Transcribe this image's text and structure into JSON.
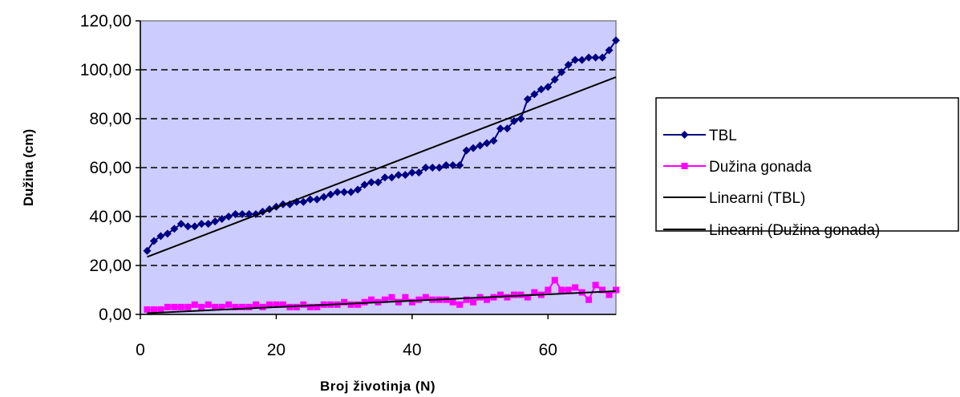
{
  "chart_data": {
    "type": "line",
    "xlabel": "Broj životinja (N)",
    "ylabel": "Dužina (cm)",
    "xlim": [
      0,
      70
    ],
    "ylim": [
      0,
      120
    ],
    "x_ticks": [
      0,
      20,
      40,
      60
    ],
    "x_tick_labels": [
      "0",
      "20",
      "40",
      "60"
    ],
    "y_ticks": [
      0,
      20,
      40,
      60,
      80,
      100,
      120
    ],
    "y_tick_labels": [
      "0,00",
      "20,00",
      "40,00",
      "60,00",
      "80,00",
      "100,00",
      "120,00"
    ],
    "grid": "horizontal dashed",
    "plot_background": "#ccccff",
    "legend_position": "right",
    "series": [
      {
        "name": "TBL",
        "color": "#000080",
        "marker": "diamond",
        "x": [
          1,
          2,
          3,
          4,
          5,
          6,
          7,
          8,
          9,
          10,
          11,
          12,
          13,
          14,
          15,
          16,
          17,
          18,
          19,
          20,
          21,
          22,
          23,
          24,
          25,
          26,
          27,
          28,
          29,
          30,
          31,
          32,
          33,
          34,
          35,
          36,
          37,
          38,
          39,
          40,
          41,
          42,
          43,
          44,
          45,
          46,
          47,
          48,
          49,
          50,
          51,
          52,
          53,
          54,
          55,
          56,
          57,
          58,
          59,
          60,
          61,
          62,
          63,
          64,
          65,
          66,
          67,
          68,
          69,
          70
        ],
        "values": [
          26,
          30,
          32,
          33,
          35,
          37,
          36,
          36,
          37,
          37,
          38,
          39,
          40,
          41,
          41,
          41,
          41,
          42,
          43,
          44,
          45,
          45,
          46,
          46,
          47,
          47,
          48,
          49,
          50,
          50,
          50,
          51,
          53,
          54,
          54,
          56,
          56,
          57,
          57,
          58,
          58,
          60,
          60,
          60,
          61,
          61,
          61,
          67,
          68,
          69,
          70,
          71,
          76,
          76,
          79,
          80,
          88,
          90,
          92,
          93,
          96,
          99,
          102,
          104,
          104,
          105,
          105,
          105,
          108,
          112
        ]
      },
      {
        "name": "Dužina gonada",
        "color": "#ff00ff",
        "marker": "square",
        "x": [
          1,
          2,
          3,
          4,
          5,
          6,
          7,
          8,
          9,
          10,
          11,
          12,
          13,
          14,
          15,
          16,
          17,
          18,
          19,
          20,
          21,
          22,
          23,
          24,
          25,
          26,
          27,
          28,
          29,
          30,
          31,
          32,
          33,
          34,
          35,
          36,
          37,
          38,
          39,
          40,
          41,
          42,
          43,
          44,
          45,
          46,
          47,
          48,
          49,
          50,
          51,
          52,
          53,
          54,
          55,
          56,
          57,
          58,
          59,
          60,
          61,
          62,
          63,
          64,
          65,
          66,
          67,
          68,
          69,
          70
        ],
        "values": [
          2,
          2,
          2,
          3,
          3,
          3,
          3,
          4,
          3,
          4,
          3,
          3,
          4,
          3,
          3,
          3,
          4,
          3,
          4,
          4,
          4,
          3,
          3,
          4,
          3,
          3,
          4,
          4,
          4,
          5,
          4,
          4,
          5,
          6,
          5,
          6,
          7,
          5,
          7,
          5,
          6,
          7,
          6,
          6,
          6,
          5,
          4,
          6,
          5,
          7,
          6,
          7,
          8,
          7,
          8,
          8,
          7,
          9,
          8,
          10,
          14,
          10,
          10,
          11,
          9,
          6,
          12,
          10,
          8,
          10
        ]
      },
      {
        "name": "Linearni (TBL)",
        "color": "#000000",
        "trend_endpoints": {
          "x": [
            1,
            70
          ],
          "values": [
            23.5,
            97
          ]
        }
      },
      {
        "name": "Linearni (Dužina gonada)",
        "color": "#000000",
        "trend_endpoints": {
          "x": [
            1,
            70
          ],
          "values": [
            0.5,
            9.5
          ]
        }
      }
    ]
  }
}
